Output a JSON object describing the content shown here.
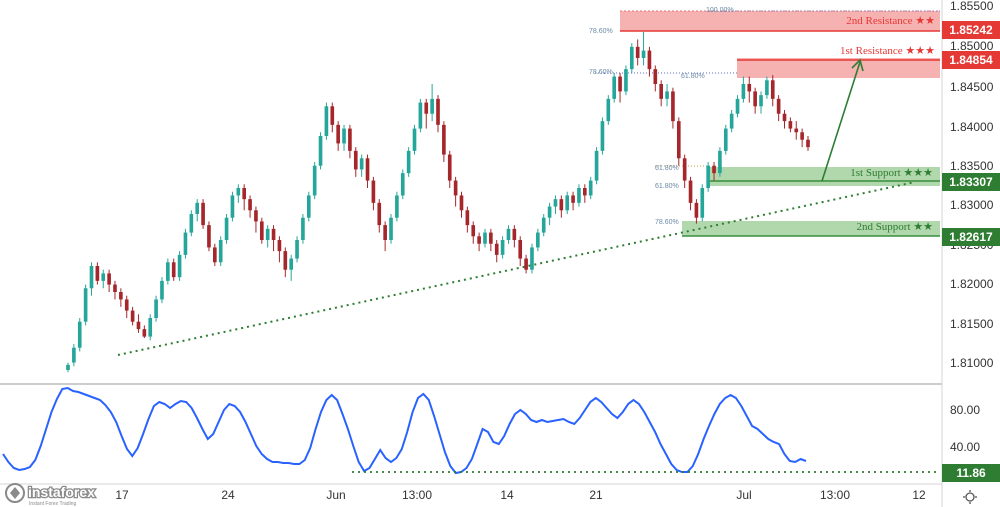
{
  "colors": {
    "up": "#26a69a",
    "down": "#a5262b",
    "resistance_fill": "#f5a3a3",
    "resistance_border": "#e53935",
    "resistance_text": "#e53935",
    "support_fill": "#a8d4a3",
    "support_border": "#388e3c",
    "support_text": "#2e7d32",
    "oscillator": "#2962ff",
    "trendline": "#2e7d32",
    "axis_text": "#333333"
  },
  "price_axis": {
    "ticks": [
      "1.85500",
      "1.85000",
      "1.84500",
      "1.84000",
      "1.83500",
      "1.83000",
      "1.82500",
      "1.82000",
      "1.81500",
      "1.81000"
    ]
  },
  "time_axis": {
    "ticks": [
      "17",
      "24",
      "Jun",
      "13:00",
      "14",
      "21",
      "Jul",
      "13:00",
      "12"
    ]
  },
  "zones": [
    {
      "id": "r2",
      "label": "2nd Resistance ★★",
      "price": "1.85242",
      "kind": "resistance"
    },
    {
      "id": "r1",
      "label": "1st Resistance ★★★",
      "price": "1.84854",
      "kind": "resistance"
    },
    {
      "id": "s1",
      "label": "1st Support ★★★",
      "price": "1.83307",
      "kind": "support"
    },
    {
      "id": "s2",
      "label": "2nd Support ★★",
      "price": "1.82617",
      "kind": "support"
    }
  ],
  "fib_labels": [
    "100.00%",
    "78.60%",
    "78.60%",
    "61.80%",
    "61.80%",
    "61.80%",
    "78.60%"
  ],
  "oscillator": {
    "ticks": [
      "80.00",
      "40.00"
    ],
    "level_label": "11.86"
  },
  "brand": {
    "name": "instaforex",
    "tagline": "Instant Forex Trading"
  },
  "settings_icon": "gear-icon",
  "chart_data": [
    {
      "type": "candlestick",
      "title": "",
      "ylim": [
        1.8065,
        1.8555
      ],
      "x_ticks": [
        "17",
        "24",
        "Jun",
        "13:00",
        "14",
        "21",
        "Jul",
        "13:00",
        "12"
      ],
      "candles": [
        [
          1.8065,
          1.8072,
          1.8062,
          1.8075
        ],
        [
          1.8075,
          1.8095,
          1.807,
          1.81
        ],
        [
          1.8095,
          1.813,
          1.809,
          1.8135
        ],
        [
          1.813,
          1.8175,
          1.8125,
          1.818
        ],
        [
          1.8175,
          1.8205,
          1.8165,
          1.821
        ],
        [
          1.8205,
          1.8185,
          1.818,
          1.821
        ],
        [
          1.8185,
          1.8195,
          1.8175,
          1.82
        ],
        [
          1.8195,
          1.818,
          1.817,
          1.82
        ],
        [
          1.818,
          1.817,
          1.816,
          1.8185
        ],
        [
          1.817,
          1.816,
          1.815,
          1.8175
        ],
        [
          1.816,
          1.8145,
          1.8135,
          1.8165
        ],
        [
          1.8145,
          1.813,
          1.8125,
          1.815
        ],
        [
          1.813,
          1.812,
          1.8115,
          1.814
        ],
        [
          1.812,
          1.811,
          1.8108,
          1.8125
        ],
        [
          1.811,
          1.8135,
          1.8105,
          1.814
        ],
        [
          1.8135,
          1.816,
          1.813,
          1.8165
        ],
        [
          1.816,
          1.8185,
          1.8155,
          1.819
        ],
        [
          1.8185,
          1.821,
          1.818,
          1.8215
        ],
        [
          1.821,
          1.819,
          1.8185,
          1.8215
        ],
        [
          1.819,
          1.822,
          1.8185,
          1.8225
        ],
        [
          1.822,
          1.825,
          1.8215,
          1.8255
        ],
        [
          1.825,
          1.8275,
          1.8245,
          1.828
        ],
        [
          1.8275,
          1.829,
          1.8265,
          1.8295
        ],
        [
          1.829,
          1.826,
          1.8255,
          1.8295
        ],
        [
          1.826,
          1.823,
          1.8225,
          1.8265
        ],
        [
          1.823,
          1.821,
          1.8205,
          1.8235
        ],
        [
          1.821,
          1.824,
          1.8205,
          1.8245
        ],
        [
          1.824,
          1.827,
          1.8235,
          1.8275
        ],
        [
          1.827,
          1.83,
          1.8265,
          1.8305
        ],
        [
          1.83,
          1.831,
          1.829,
          1.8315
        ],
        [
          1.831,
          1.8295,
          1.828,
          1.8315
        ],
        [
          1.8295,
          1.828,
          1.827,
          1.83
        ],
        [
          1.828,
          1.8265,
          1.825,
          1.8285
        ],
        [
          1.8265,
          1.824,
          1.8235,
          1.827
        ],
        [
          1.824,
          1.8255,
          1.823,
          1.826
        ],
        [
          1.8255,
          1.824,
          1.8225,
          1.826
        ],
        [
          1.824,
          1.8225,
          1.821,
          1.8245
        ],
        [
          1.8225,
          1.82,
          1.819,
          1.823
        ],
        [
          1.82,
          1.8215,
          1.8185,
          1.822
        ],
        [
          1.8215,
          1.824,
          1.821,
          1.8245
        ],
        [
          1.824,
          1.827,
          1.8235,
          1.8275
        ],
        [
          1.827,
          1.83,
          1.8265,
          1.8305
        ],
        [
          1.83,
          1.834,
          1.8295,
          1.8345
        ],
        [
          1.834,
          1.838,
          1.8335,
          1.8385
        ],
        [
          1.838,
          1.842,
          1.8375,
          1.8425
        ],
        [
          1.842,
          1.8395,
          1.8385,
          1.8425
        ],
        [
          1.8395,
          1.837,
          1.836,
          1.84
        ],
        [
          1.837,
          1.839,
          1.836,
          1.8395
        ],
        [
          1.839,
          1.836,
          1.835,
          1.8395
        ],
        [
          1.836,
          1.8335,
          1.8325,
          1.8365
        ],
        [
          1.8335,
          1.835,
          1.8325,
          1.8355
        ],
        [
          1.835,
          1.832,
          1.831,
          1.8355
        ],
        [
          1.832,
          1.829,
          1.828,
          1.8325
        ],
        [
          1.829,
          1.826,
          1.825,
          1.8295
        ],
        [
          1.826,
          1.824,
          1.8225,
          1.8265
        ],
        [
          1.824,
          1.827,
          1.8235,
          1.8275
        ],
        [
          1.827,
          1.83,
          1.8265,
          1.8305
        ],
        [
          1.83,
          1.833,
          1.8295,
          1.8335
        ],
        [
          1.833,
          1.836,
          1.8325,
          1.8365
        ],
        [
          1.836,
          1.839,
          1.8355,
          1.8395
        ],
        [
          1.839,
          1.8425,
          1.8385,
          1.843
        ],
        [
          1.8425,
          1.841,
          1.839,
          1.843
        ],
        [
          1.841,
          1.843,
          1.84,
          1.845
        ],
        [
          1.843,
          1.8395,
          1.8385,
          1.8435
        ],
        [
          1.8395,
          1.8355,
          1.8345,
          1.84
        ],
        [
          1.8355,
          1.832,
          1.831,
          1.836
        ],
        [
          1.832,
          1.83,
          1.8285,
          1.8325
        ],
        [
          1.83,
          1.828,
          1.827,
          1.8305
        ],
        [
          1.828,
          1.826,
          1.825,
          1.8285
        ],
        [
          1.826,
          1.8245,
          1.8235,
          1.8265
        ],
        [
          1.8245,
          1.8235,
          1.8225,
          1.825
        ],
        [
          1.8235,
          1.825,
          1.823,
          1.8255
        ],
        [
          1.825,
          1.8235,
          1.8225,
          1.8255
        ],
        [
          1.8235,
          1.822,
          1.821,
          1.824
        ],
        [
          1.822,
          1.824,
          1.8215,
          1.8245
        ],
        [
          1.824,
          1.8255,
          1.8235,
          1.826
        ],
        [
          1.8255,
          1.824,
          1.823,
          1.826
        ],
        [
          1.824,
          1.8215,
          1.8205,
          1.8245
        ],
        [
          1.8215,
          1.82,
          1.8195,
          1.822
        ],
        [
          1.82,
          1.823,
          1.8195,
          1.8235
        ],
        [
          1.823,
          1.825,
          1.8225,
          1.8255
        ],
        [
          1.825,
          1.827,
          1.8245,
          1.8275
        ],
        [
          1.827,
          1.8285,
          1.826,
          1.829
        ],
        [
          1.8285,
          1.8295,
          1.8275,
          1.83
        ],
        [
          1.8295,
          1.828,
          1.827,
          1.83
        ],
        [
          1.828,
          1.83,
          1.8275,
          1.8305
        ],
        [
          1.83,
          1.829,
          1.828,
          1.8305
        ],
        [
          1.829,
          1.831,
          1.8285,
          1.8315
        ],
        [
          1.831,
          1.83,
          1.829,
          1.8315
        ],
        [
          1.83,
          1.832,
          1.8295,
          1.8325
        ],
        [
          1.832,
          1.836,
          1.8315,
          1.8365
        ],
        [
          1.836,
          1.84,
          1.8355,
          1.8405
        ],
        [
          1.84,
          1.843,
          1.8395,
          1.8435
        ],
        [
          1.843,
          1.846,
          1.8425,
          1.8465
        ],
        [
          1.846,
          1.844,
          1.8425,
          1.8465
        ],
        [
          1.844,
          1.847,
          1.8435,
          1.8475
        ],
        [
          1.847,
          1.85,
          1.8465,
          1.8505
        ],
        [
          1.85,
          1.8485,
          1.8475,
          1.851
        ],
        [
          1.8485,
          1.8495,
          1.8475,
          1.852
        ],
        [
          1.8495,
          1.847,
          1.846,
          1.85
        ],
        [
          1.847,
          1.845,
          1.844,
          1.8475
        ],
        [
          1.845,
          1.843,
          1.842,
          1.8455
        ],
        [
          1.843,
          1.844,
          1.842,
          1.845
        ],
        [
          1.844,
          1.84,
          1.839,
          1.8445
        ],
        [
          1.84,
          1.835,
          1.834,
          1.8405
        ],
        [
          1.835,
          1.832,
          1.831,
          1.8355
        ],
        [
          1.832,
          1.829,
          1.828,
          1.8325
        ],
        [
          1.829,
          1.827,
          1.8262,
          1.8295
        ],
        [
          1.827,
          1.831,
          1.8265,
          1.8315
        ],
        [
          1.831,
          1.834,
          1.8305,
          1.8345
        ],
        [
          1.834,
          1.833,
          1.832,
          1.8345
        ],
        [
          1.833,
          1.836,
          1.8325,
          1.8365
        ],
        [
          1.836,
          1.839,
          1.8355,
          1.8395
        ],
        [
          1.839,
          1.841,
          1.8385,
          1.8415
        ],
        [
          1.841,
          1.843,
          1.8405,
          1.8435
        ],
        [
          1.843,
          1.845,
          1.8425,
          1.846
        ],
        [
          1.845,
          1.844,
          1.8425,
          1.846
        ],
        [
          1.844,
          1.842,
          1.841,
          1.8445
        ],
        [
          1.842,
          1.8435,
          1.841,
          1.844
        ],
        [
          1.8435,
          1.8455,
          1.843,
          1.846
        ],
        [
          1.8455,
          1.843,
          1.842,
          1.8462
        ],
        [
          1.843,
          1.841,
          1.84,
          1.8435
        ],
        [
          1.841,
          1.84,
          1.839,
          1.8415
        ],
        [
          1.84,
          1.839,
          1.8385,
          1.8405
        ],
        [
          1.839,
          1.8385,
          1.8375,
          1.84
        ],
        [
          1.8385,
          1.8375,
          1.8365,
          1.839
        ],
        [
          1.8375,
          1.8365,
          1.836,
          1.838
        ]
      ]
    },
    {
      "type": "line",
      "title": "",
      "ylim": [
        0,
        100
      ],
      "y_ticks": [
        80,
        40
      ],
      "level": 11.86,
      "values": [
        30,
        22,
        16,
        14,
        15,
        17,
        24,
        38,
        55,
        72,
        85,
        95,
        96,
        93,
        92,
        90,
        88,
        86,
        84,
        79,
        72,
        62,
        48,
        35,
        28,
        36,
        50,
        65,
        78,
        82,
        80,
        76,
        80,
        83,
        82,
        76,
        66,
        55,
        45,
        50,
        62,
        74,
        80,
        78,
        72,
        62,
        50,
        38,
        30,
        25,
        22,
        22,
        21,
        21,
        20,
        20,
        24,
        36,
        55,
        72,
        84,
        89,
        84,
        70,
        55,
        38,
        22,
        13,
        16,
        25,
        34,
        26,
        22,
        26,
        35,
        52,
        72,
        86,
        90,
        84,
        68,
        50,
        32,
        18,
        11,
        12,
        16,
        25,
        40,
        55,
        52,
        42,
        40,
        48,
        60,
        70,
        74,
        70,
        64,
        62,
        64,
        62,
        63,
        64,
        65,
        62,
        60,
        66,
        74,
        82,
        86,
        82,
        76,
        70,
        66,
        72,
        80,
        84,
        80,
        72,
        62,
        52,
        40,
        30,
        20,
        14,
        12,
        12,
        18,
        30,
        45,
        58,
        70,
        80,
        86,
        89,
        86,
        78,
        68,
        58,
        55,
        50,
        45,
        42,
        40,
        30,
        23,
        22,
        25,
        23
      ]
    }
  ]
}
